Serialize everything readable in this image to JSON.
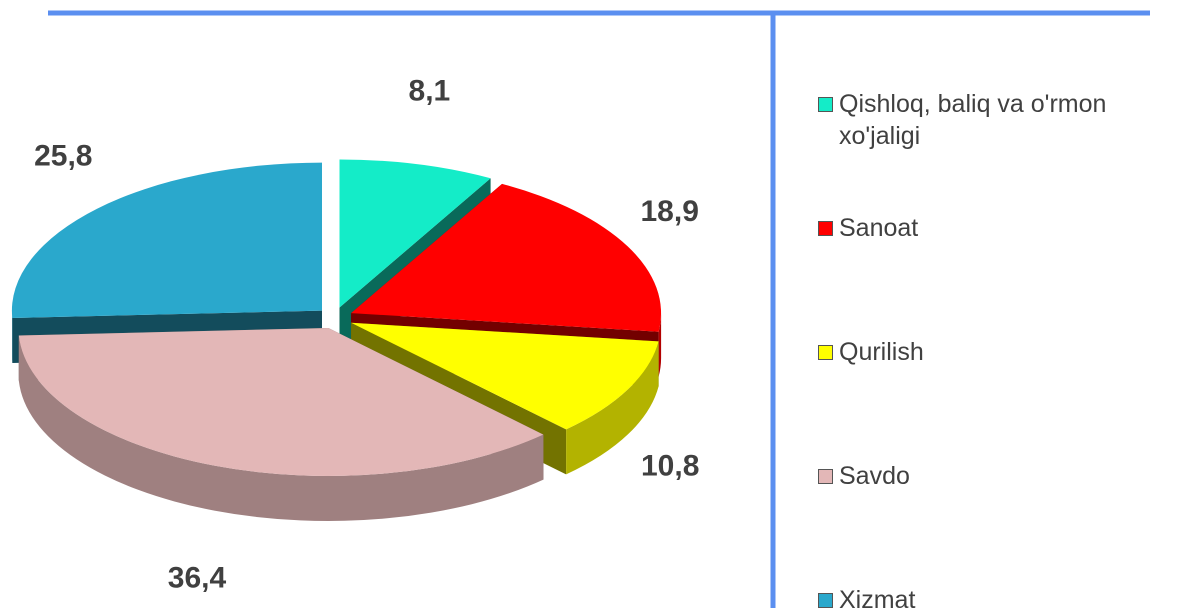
{
  "chart_data": {
    "type": "pie",
    "categories": [
      "Qishloq, baliq va o'rmon xo'jaligi",
      "Sanoat",
      "Qurilish",
      "Savdo",
      "Xizmat"
    ],
    "values": [
      8.1,
      18.9,
      10.8,
      36.4,
      25.8
    ],
    "value_labels": [
      "8,1",
      "18,9",
      "10,8",
      "36,4",
      "25,8"
    ],
    "colors": [
      "#14ecc8",
      "#ff0000",
      "#ffff00",
      "#e3b7b7",
      "#2aa8cc"
    ],
    "legend": "right"
  }
}
